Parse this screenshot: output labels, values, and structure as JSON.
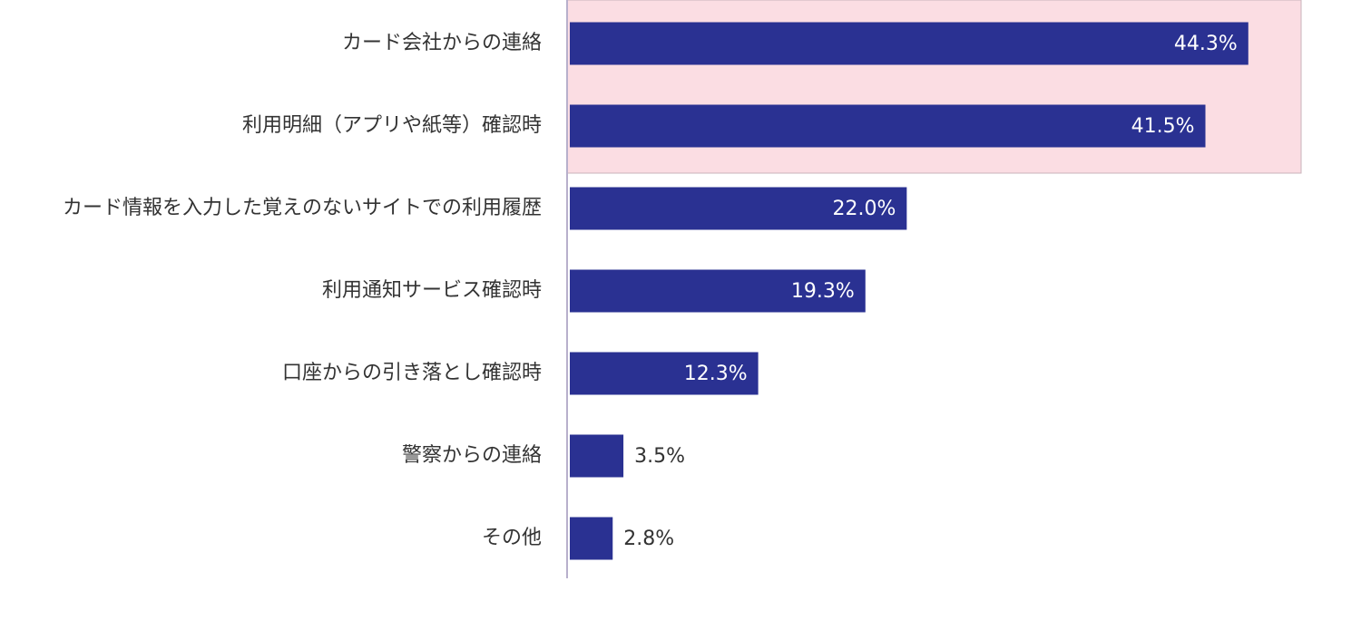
{
  "chart_data": {
    "type": "bar",
    "orientation": "horizontal",
    "categories": [
      "カード会社からの連絡",
      "利用明細（アプリや紙等）確認時",
      "カード情報を入力した覚えのないサイトでの利用履歴",
      "利用通知サービス確認時",
      "口座からの引き落とし確認時",
      "警察からの連絡",
      "その他"
    ],
    "values": [
      44.3,
      41.5,
      22.0,
      19.3,
      12.3,
      3.5,
      2.8
    ],
    "value_labels": [
      "44.3%",
      "41.5%",
      "22.0%",
      "19.3%",
      "12.3%",
      "3.5%",
      "2.8%"
    ],
    "color": "#2a3192",
    "xlim": [
      0,
      50
    ]
  }
}
